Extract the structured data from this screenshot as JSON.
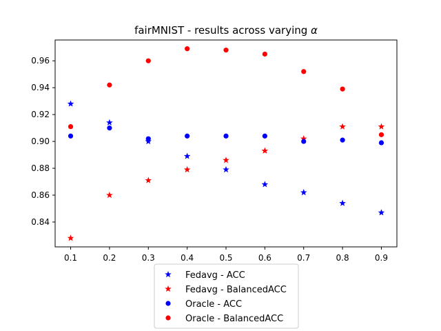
{
  "chart_data": {
    "type": "scatter",
    "title": "fairMNIST - results across varying ",
    "title_symbol": "α",
    "xlabel": "",
    "ylabel": "",
    "x": [
      0.1,
      0.2,
      0.3,
      0.4,
      0.5,
      0.6,
      0.7,
      0.8,
      0.9
    ],
    "xticks": [
      "0.1",
      "0.2",
      "0.3",
      "0.4",
      "0.5",
      "0.6",
      "0.7",
      "0.8",
      "0.9"
    ],
    "yticks": [
      "0.84",
      "0.86",
      "0.88",
      "0.90",
      "0.92",
      "0.94",
      "0.96"
    ],
    "xlim": [
      0.06,
      0.94
    ],
    "ylim": [
      0.8215,
      0.9755
    ],
    "grid": false,
    "legend_position": "bottom-center",
    "series": [
      {
        "name": "Fedavg - ACC",
        "marker": "star",
        "color": "#0000ff",
        "values": [
          0.928,
          0.914,
          0.9,
          0.889,
          0.879,
          0.868,
          0.862,
          0.854,
          0.847
        ]
      },
      {
        "name": "Fedavg - BalancedACC",
        "marker": "star",
        "color": "#ff0000",
        "values": [
          0.828,
          0.86,
          0.871,
          0.879,
          0.886,
          0.893,
          0.902,
          0.911,
          0.911
        ]
      },
      {
        "name": "Oracle - ACC",
        "marker": "circle",
        "color": "#0000ff",
        "values": [
          0.904,
          0.91,
          0.902,
          0.904,
          0.904,
          0.904,
          0.9,
          0.901,
          0.899
        ]
      },
      {
        "name": "Oracle - BalancedACC",
        "marker": "circle",
        "color": "#ff0000",
        "values": [
          0.911,
          0.942,
          0.96,
          0.969,
          0.968,
          0.965,
          0.952,
          0.939,
          0.905
        ]
      }
    ]
  }
}
